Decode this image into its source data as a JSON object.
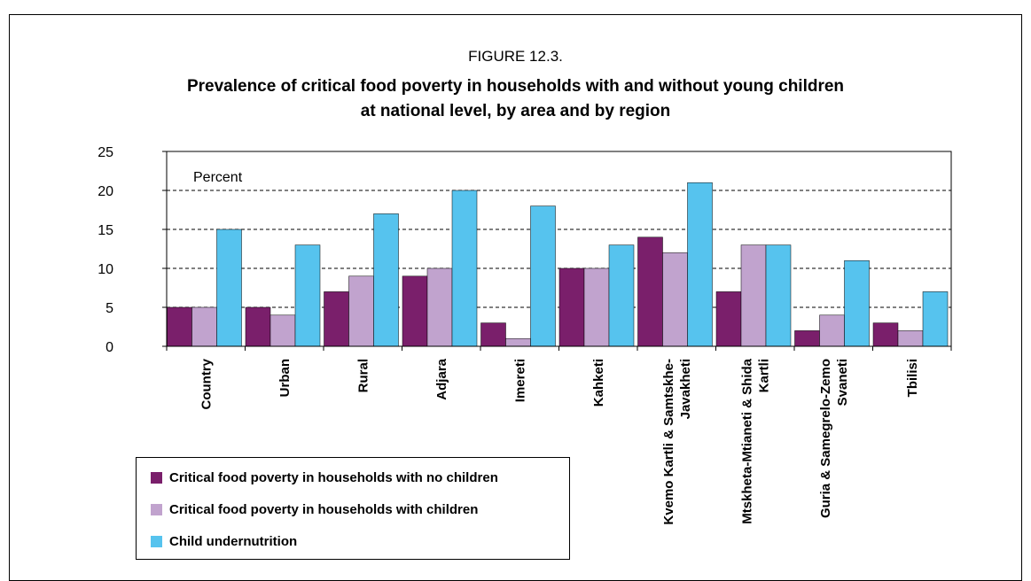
{
  "figure": {
    "label": "FIGURE 12.3.",
    "title_line1": "Prevalence of critical food poverty in households with and without young children",
    "title_line2": "at national level, by area and by region"
  },
  "chart_data": {
    "type": "bar",
    "title": "Prevalence of critical food poverty in households with and without young children at national level, by area and by region",
    "ylabel": "Percent",
    "xlabel": "",
    "ylim": [
      0,
      25
    ],
    "yticks": [
      0,
      5,
      10,
      15,
      20,
      25
    ],
    "grid": true,
    "legend_position": "bottom-left",
    "categories": [
      "Country",
      "Urban",
      "Rural",
      "Adjara",
      "Imereti",
      "Kahketi",
      "Kvemo Kartli & Samtskhe-Javakheti",
      "Mtskheta-Mtianeti & Shida Kartli",
      "Guria & Samegrelo-Zemo Svaneti",
      "Tbilisi"
    ],
    "category_lines": [
      [
        "Country"
      ],
      [
        "Urban"
      ],
      [
        "Rural"
      ],
      [
        "Adjara"
      ],
      [
        "Imereti"
      ],
      [
        "Kahketi"
      ],
      [
        "Kvemo Kartli & Samtskhe-",
        "Javakheti"
      ],
      [
        "Mtskheta-Mtianeti & Shida",
        "Kartli"
      ],
      [
        "Guria & Samegrelo-Zemo",
        "Svaneti"
      ],
      [
        "Tbilisi"
      ]
    ],
    "series": [
      {
        "name": "Critical food poverty in households with no children",
        "color": "#7a1f6b",
        "values": [
          5,
          5,
          7,
          9,
          3,
          10,
          14,
          7,
          2,
          3
        ]
      },
      {
        "name": "Critical food poverty in households with children",
        "color": "#c1a3ce",
        "values": [
          5,
          4,
          9,
          10,
          1,
          10,
          12,
          13,
          4,
          2
        ]
      },
      {
        "name": "Child undernutrition",
        "color": "#56c3ee",
        "values": [
          15,
          13,
          17,
          20,
          18,
          13,
          21,
          13,
          11,
          7
        ]
      }
    ]
  }
}
